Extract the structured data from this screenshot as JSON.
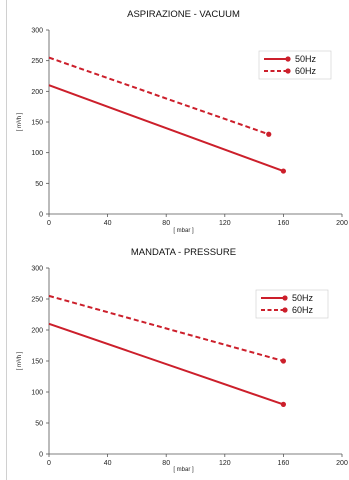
{
  "chart_data": [
    {
      "type": "line",
      "title": "ASPIRAZIONE - VACUUM",
      "xlabel": "[ mbar ]",
      "ylabel": "[ m³/h ]",
      "xlim": [
        0,
        200
      ],
      "ylim": [
        0,
        300
      ],
      "xticks": [
        0,
        40,
        80,
        120,
        160,
        200
      ],
      "yticks": [
        0,
        50,
        100,
        150,
        200,
        250,
        300
      ],
      "legend_position": "top-right",
      "grid": false,
      "series": [
        {
          "name": "50Hz",
          "style": "solid",
          "color": "#cc1f2b",
          "x": [
            0,
            160
          ],
          "y": [
            210,
            70
          ]
        },
        {
          "name": "60Hz",
          "style": "dashed",
          "color": "#cc1f2b",
          "x": [
            0,
            150
          ],
          "y": [
            255,
            130
          ]
        }
      ]
    },
    {
      "type": "line",
      "title": "MANDATA - PRESSURE",
      "xlabel": "[ mbar ]",
      "ylabel": "[ m³/h ]",
      "xlim": [
        0,
        200
      ],
      "ylim": [
        0,
        300
      ],
      "xticks": [
        0,
        40,
        80,
        120,
        160,
        200
      ],
      "yticks": [
        0,
        50,
        100,
        150,
        200,
        250,
        300
      ],
      "legend_position": "top-right",
      "grid": false,
      "series": [
        {
          "name": "50Hz",
          "style": "solid",
          "color": "#cc1f2b",
          "x": [
            0,
            160
          ],
          "y": [
            210,
            80
          ]
        },
        {
          "name": "60Hz",
          "style": "dashed",
          "color": "#cc1f2b",
          "x": [
            0,
            160
          ],
          "y": [
            255,
            150
          ]
        }
      ]
    }
  ]
}
